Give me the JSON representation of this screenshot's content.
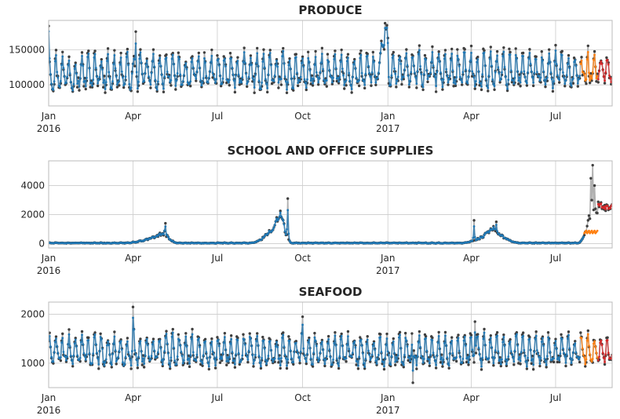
{
  "chart_data": [
    {
      "type": "line",
      "title": "PRODUCE",
      "xlabel": "",
      "ylabel": "",
      "x_range": [
        "2016-01-01",
        "2017-08-31"
      ],
      "x_ticks": [
        {
          "date": "2016-01-01",
          "label": "Jan",
          "sublabel": "2016"
        },
        {
          "date": "2016-04-01",
          "label": "Apr",
          "sublabel": ""
        },
        {
          "date": "2016-07-01",
          "label": "Jul",
          "sublabel": ""
        },
        {
          "date": "2016-10-01",
          "label": "Oct",
          "sublabel": ""
        },
        {
          "date": "2017-01-01",
          "label": "Jan",
          "sublabel": "2017"
        },
        {
          "date": "2017-04-01",
          "label": "Apr",
          "sublabel": ""
        },
        {
          "date": "2017-07-01",
          "label": "Jul",
          "sublabel": ""
        }
      ],
      "ylim": [
        70000,
        192000
      ],
      "y_ticks": [
        100000,
        150000
      ],
      "y_tick_labels": [
        "100000",
        "150000"
      ],
      "grid": true,
      "colors": {
        "observed": "#3f3f3f",
        "fit": "#1f77b4",
        "forecast_fit": "#ff7f0e",
        "forecast": "#d62728"
      },
      "observed_segments": [
        {
          "start": "2016-01-01",
          "end": "2016-12-24",
          "base": 118000,
          "weekly_amp": 24000,
          "trend": 0
        },
        {
          "start": "2016-12-25",
          "end": "2017-01-01",
          "base": 162000,
          "weekly_amp": 15000,
          "trend": 0
        },
        {
          "start": "2017-01-02",
          "end": "2017-08-15",
          "base": 121000,
          "weekly_amp": 25000,
          "trend": 4000
        },
        {
          "start": "2017-08-16",
          "end": "2017-08-31",
          "base": 123000,
          "weekly_amp": 18000,
          "trend": 0
        }
      ],
      "forecast_fit_start": "2017-07-28",
      "forecast_start": "2017-08-16",
      "peaks": [
        {
          "date": "2016-01-01",
          "value": 184000
        },
        {
          "date": "2016-04-04",
          "value": 176000
        },
        {
          "date": "2016-12-29",
          "value": 188000
        },
        {
          "date": "2016-12-31",
          "value": 185000
        }
      ]
    },
    {
      "type": "line",
      "title": "SCHOOL AND OFFICE SUPPLIES",
      "xlabel": "",
      "ylabel": "",
      "x_range": [
        "2016-01-01",
        "2017-08-31"
      ],
      "x_ticks": [
        {
          "date": "2016-01-01",
          "label": "Jan",
          "sublabel": "2016"
        },
        {
          "date": "2016-04-01",
          "label": "Apr",
          "sublabel": ""
        },
        {
          "date": "2016-07-01",
          "label": "Jul",
          "sublabel": ""
        },
        {
          "date": "2016-10-01",
          "label": "Oct",
          "sublabel": ""
        },
        {
          "date": "2017-01-01",
          "label": "Jan",
          "sublabel": "2017"
        },
        {
          "date": "2017-04-01",
          "label": "Apr",
          "sublabel": ""
        },
        {
          "date": "2017-07-01",
          "label": "Jul",
          "sublabel": ""
        }
      ],
      "ylim": [
        -300,
        5700
      ],
      "y_ticks": [
        0,
        2000,
        4000
      ],
      "y_tick_labels": [
        "0",
        "2000",
        "4000"
      ],
      "grid": true,
      "colors": {
        "observed": "#3f3f3f",
        "fit": "#1f77b4",
        "forecast_fit": "#ff7f0e",
        "forecast": "#d62728"
      },
      "base_level": 40,
      "weekly_amp": 30,
      "bumps": [
        {
          "start": "2016-03-20",
          "end": "2016-05-20",
          "peak_date": "2016-05-05",
          "peak": 700
        },
        {
          "start": "2016-08-05",
          "end": "2016-09-20",
          "peak_date": "2016-09-08",
          "peak": 2000
        },
        {
          "start": "2017-03-20",
          "end": "2017-05-25",
          "peak_date": "2017-04-25",
          "peak": 1000
        },
        {
          "start": "2017-07-25",
          "end": "2017-08-31",
          "peak_date": "2017-08-10",
          "peak": 3000
        }
      ],
      "spikes": [
        {
          "date": "2016-05-06",
          "value": 1400
        },
        {
          "date": "2016-09-15",
          "value": 3100
        },
        {
          "date": "2017-04-04",
          "value": 1600
        },
        {
          "date": "2017-04-28",
          "value": 1500
        },
        {
          "date": "2017-08-08",
          "value": 4500
        },
        {
          "date": "2017-08-10",
          "value": 5400
        },
        {
          "date": "2017-08-12",
          "value": 4000
        }
      ],
      "forecast_fit_start": "2017-08-01",
      "forecast_fit_level": 800,
      "forecast_start": "2017-08-16",
      "forecast_level": 2600
    },
    {
      "type": "line",
      "title": "SEAFOOD",
      "xlabel": "",
      "ylabel": "",
      "x_range": [
        "2016-01-01",
        "2017-08-31"
      ],
      "x_ticks": [
        {
          "date": "2016-01-01",
          "label": "Jan",
          "sublabel": "2016"
        },
        {
          "date": "2016-04-01",
          "label": "Apr",
          "sublabel": ""
        },
        {
          "date": "2016-07-01",
          "label": "Jul",
          "sublabel": ""
        },
        {
          "date": "2016-10-01",
          "label": "Oct",
          "sublabel": ""
        },
        {
          "date": "2017-01-01",
          "label": "Jan",
          "sublabel": "2017"
        },
        {
          "date": "2017-04-01",
          "label": "Apr",
          "sublabel": ""
        },
        {
          "date": "2017-07-01",
          "label": "Jul",
          "sublabel": ""
        }
      ],
      "ylim": [
        500,
        2250
      ],
      "y_ticks": [
        1000,
        2000
      ],
      "y_tick_labels": [
        "1000",
        "2000"
      ],
      "grid": true,
      "colors": {
        "observed": "#3f3f3f",
        "fit": "#1f77b4",
        "forecast_fit": "#ff7f0e",
        "forecast": "#d62728"
      },
      "base_level": 1250,
      "weekly_amp": 320,
      "forecast_fit_start": "2017-07-28",
      "forecast_start": "2017-08-16",
      "forecast_level": 1000,
      "peaks": [
        {
          "date": "2016-04-01",
          "value": 2150
        },
        {
          "date": "2016-10-01",
          "value": 1950
        },
        {
          "date": "2017-04-05",
          "value": 1850
        },
        {
          "date": "2017-01-28",
          "value": 600
        }
      ]
    }
  ]
}
